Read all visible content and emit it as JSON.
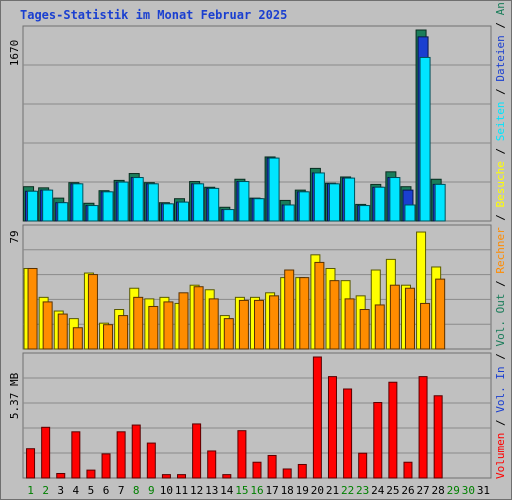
{
  "title": "Tages-Statistik im Monat Februar 2025",
  "colors": {
    "background": "#c0c0c0",
    "panel_border": "#6f6f6f",
    "grid": "#8a8a8a",
    "anfragen": "#1a7d5a",
    "dateien": "#1a3fd0",
    "seiten": "#00e5ff",
    "besuche": "#ffff00",
    "rechner": "#ff8c00",
    "volumen": "#ff0000",
    "day_normal": "#000000",
    "day_weekend": "#008000"
  },
  "chart_data": [
    {
      "type": "bar",
      "panel": "top",
      "ymax_label": "1670",
      "ylim": [
        0,
        1670
      ],
      "categories": [
        "1",
        "2",
        "3",
        "4",
        "5",
        "6",
        "7",
        "8",
        "9",
        "10",
        "11",
        "12",
        "13",
        "14",
        "15",
        "16",
        "17",
        "18",
        "19",
        "20",
        "21",
        "22",
        "23",
        "24",
        "25",
        "26",
        "27",
        "28",
        "29",
        "30",
        "31"
      ],
      "series": [
        {
          "name": "Anfragen",
          "color": "#1a7d5a",
          "values": [
            300,
            290,
            200,
            335,
            155,
            265,
            355,
            415,
            335,
            160,
            195,
            345,
            295,
            120,
            365,
            200,
            560,
            180,
            270,
            460,
            330,
            385,
            145,
            320,
            430,
            300,
            1670,
            365,
            0,
            0,
            0
          ]
        },
        {
          "name": "Dateien",
          "color": "#1a3fd0",
          "values": [
            260,
            270,
            160,
            325,
            135,
            255,
            340,
            380,
            325,
            150,
            165,
            325,
            285,
            100,
            345,
            195,
            550,
            140,
            255,
            420,
            325,
            375,
            135,
            295,
            380,
            270,
            1610,
            320,
            0,
            0,
            0
          ]
        },
        {
          "name": "Seiten",
          "color": "#00e5ff",
          "values": [
            260,
            270,
            160,
            325,
            135,
            255,
            340,
            380,
            325,
            150,
            165,
            325,
            285,
            100,
            345,
            195,
            550,
            140,
            255,
            420,
            325,
            375,
            135,
            295,
            380,
            140,
            1430,
            320,
            0,
            0,
            0
          ]
        }
      ],
      "legend": [
        "Anfragen",
        "Dateien",
        "Seiten"
      ]
    },
    {
      "type": "bar",
      "panel": "middle",
      "ymax_label": "79",
      "ylim": [
        0,
        79
      ],
      "categories": [
        "1",
        "2",
        "3",
        "4",
        "5",
        "6",
        "7",
        "8",
        "9",
        "10",
        "11",
        "12",
        "13",
        "14",
        "15",
        "16",
        "17",
        "18",
        "19",
        "20",
        "21",
        "22",
        "23",
        "24",
        "25",
        "26",
        "27",
        "28",
        "29",
        "30",
        "31"
      ],
      "series": [
        {
          "name": "Besuche",
          "color": "#ffff00",
          "values": [
            53,
            34,
            25,
            20,
            50,
            17,
            26,
            40,
            33,
            34,
            30,
            42,
            39,
            22,
            34,
            34,
            37,
            47,
            47,
            62,
            53,
            45,
            35,
            52,
            59,
            42,
            77,
            54,
            0,
            0,
            0
          ]
        },
        {
          "name": "Rechner",
          "color": "#ff8c00",
          "values": [
            53,
            31,
            23,
            14,
            49,
            16,
            22,
            34,
            28,
            31,
            37,
            41,
            33,
            20,
            32,
            32,
            35,
            52,
            47,
            57,
            45,
            33,
            26,
            29,
            42,
            40,
            30,
            46,
            0,
            0,
            0
          ]
        }
      ],
      "legend": [
        "Besuche",
        "Rechner"
      ]
    },
    {
      "type": "bar",
      "panel": "bottom",
      "ymax_label": "5.37 MB",
      "ylim": [
        0,
        5.37
      ],
      "categories": [
        "1",
        "2",
        "3",
        "4",
        "5",
        "6",
        "7",
        "8",
        "9",
        "10",
        "11",
        "12",
        "13",
        "14",
        "15",
        "16",
        "17",
        "18",
        "19",
        "20",
        "21",
        "22",
        "23",
        "24",
        "25",
        "26",
        "27",
        "28",
        "29",
        "30",
        "31"
      ],
      "series": [
        {
          "name": "Volumen",
          "color": "#ff0000",
          "values": [
            1.3,
            2.25,
            0.2,
            2.05,
            0.35,
            1.07,
            2.05,
            2.35,
            1.55,
            0.15,
            0.15,
            2.4,
            1.2,
            0.15,
            2.1,
            0.7,
            1.0,
            0.4,
            0.6,
            5.37,
            4.5,
            3.95,
            1.1,
            3.35,
            4.25,
            0.7,
            4.5,
            3.65,
            0,
            0,
            0
          ]
        }
      ],
      "legend": [
        "Volumen",
        "Vol. In",
        "Vol. Out"
      ]
    }
  ],
  "x_axis": {
    "days": [
      "1",
      "2",
      "3",
      "4",
      "5",
      "6",
      "7",
      "8",
      "9",
      "10",
      "11",
      "12",
      "13",
      "14",
      "15",
      "16",
      "17",
      "18",
      "19",
      "20",
      "21",
      "22",
      "23",
      "24",
      "25",
      "26",
      "27",
      "28",
      "29",
      "30",
      "31"
    ],
    "weekend_days": [
      "1",
      "2",
      "8",
      "9",
      "15",
      "16",
      "22",
      "23",
      "29",
      "30"
    ]
  },
  "legend_right": [
    {
      "label": "Anfragen",
      "color": "#1a7d5a"
    },
    {
      "label": "Dateien",
      "color": "#1a3fd0"
    },
    {
      "label": "Seiten",
      "color": "#00e5ff"
    },
    {
      "label": "Besuche",
      "color": "#ffff00"
    },
    {
      "label": "Rechner",
      "color": "#ff8c00"
    },
    {
      "label": "Vol. Out",
      "color": "#1a7d5a"
    },
    {
      "label": "Vol. In",
      "color": "#1a3fd0"
    },
    {
      "label": "Volumen",
      "color": "#ff0000"
    }
  ]
}
